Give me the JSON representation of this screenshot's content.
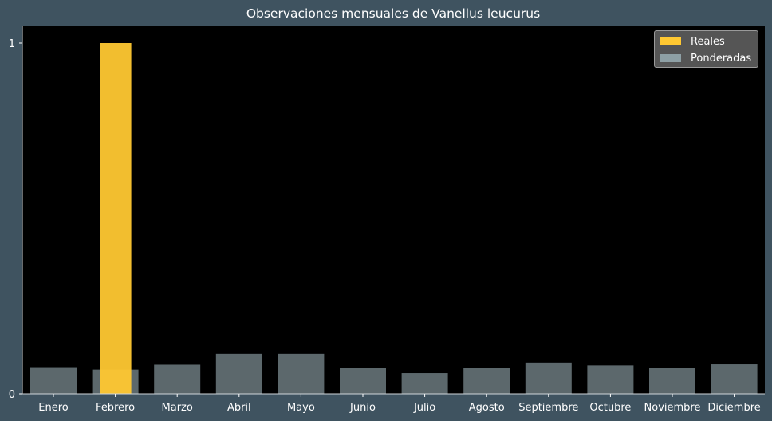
{
  "chart_data": {
    "type": "bar",
    "title": "Observaciones mensuales de Vanellus leucurus",
    "xlabel": "",
    "ylabel": "",
    "categories": [
      "Enero",
      "Febrero",
      "Marzo",
      "Abril",
      "Mayo",
      "Junio",
      "Julio",
      "Agosto",
      "Septiembre",
      "Octubre",
      "Noviembre",
      "Diciembre"
    ],
    "series": [
      {
        "name": "Reales",
        "color": "#ffc832",
        "values": [
          0,
          1,
          0,
          0,
          0,
          0,
          0,
          0,
          0,
          0,
          0,
          0
        ]
      },
      {
        "name": "Ponderadas",
        "color": "#95a8ae",
        "values": [
          0.076,
          0.069,
          0.083,
          0.114,
          0.114,
          0.073,
          0.059,
          0.075,
          0.089,
          0.081,
          0.073,
          0.084
        ]
      }
    ],
    "ylim": [
      0,
      1.05
    ],
    "yticks": [
      "0",
      "1"
    ],
    "legend_position": "top-right",
    "grid": false,
    "background": "#000000",
    "figure_background": "#3f5360"
  }
}
